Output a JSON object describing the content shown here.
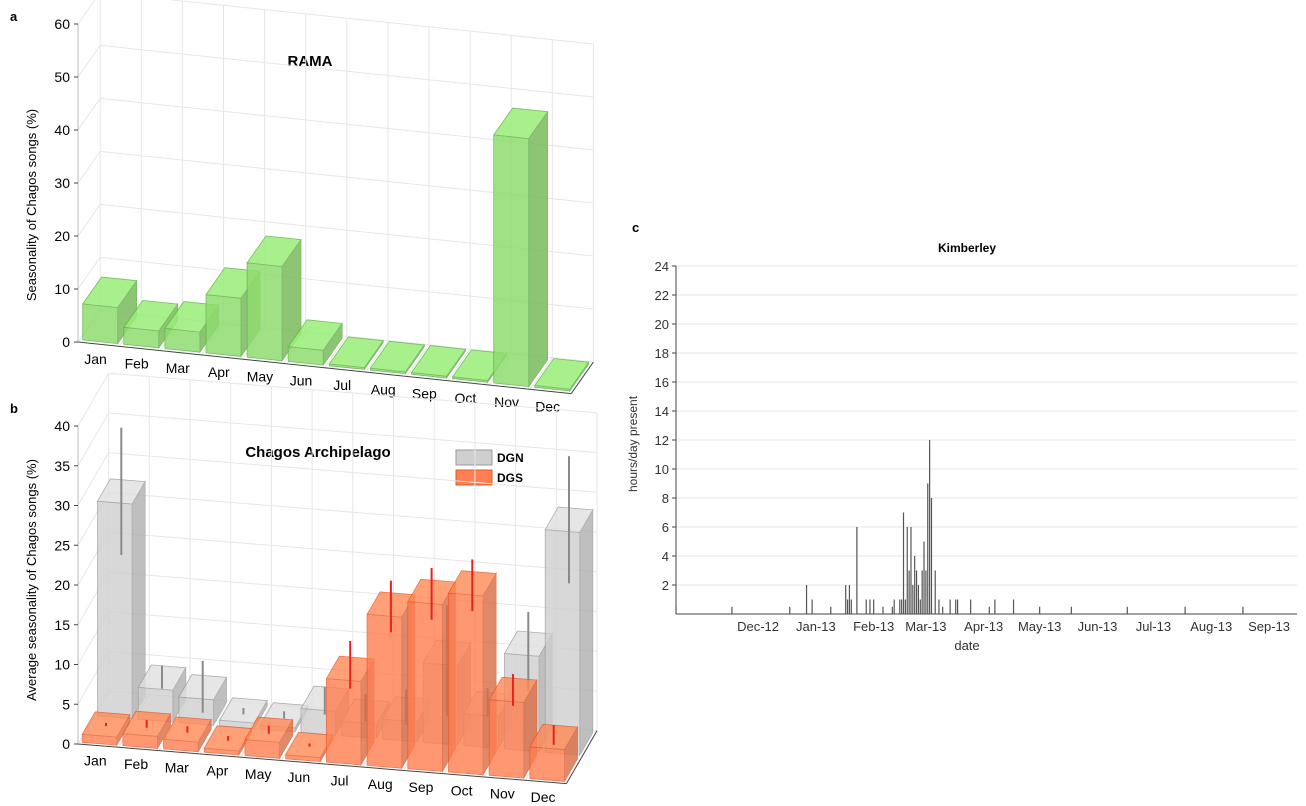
{
  "colors": {
    "rama": "#8fdc6f",
    "rama_edge": "#5fb14a",
    "dgn": "#cfcfcf",
    "dgn_edge": "#9a9a9a",
    "dgs": "#ff7f50",
    "dgs_edge": "#e0582a",
    "err_dgn": "#8a8a8a",
    "err_dgs": "#e8231f",
    "grid": "#e6e6e6",
    "bar_c": "#555555"
  },
  "chart_data": [
    {
      "panel_label": "a",
      "type": "bar",
      "title": "RAMA",
      "ylabel": "Seasonality of Chagos songs (%)",
      "ylim": [
        0,
        60
      ],
      "yticks": [
        0,
        10,
        20,
        30,
        40,
        50,
        60
      ],
      "categories": [
        "Jan",
        "Feb",
        "Mar",
        "Apr",
        "May",
        "Jun",
        "Jul",
        "Aug",
        "Sep",
        "Oct",
        "Nov",
        "Dec"
      ],
      "series": [
        {
          "values": [
            6.8,
            3.2,
            3.8,
            11.0,
            17.8,
            2.8,
            0.0,
            0.0,
            0.0,
            0.0,
            46.8,
            0.0
          ]
        }
      ]
    },
    {
      "panel_label": "b",
      "type": "bar",
      "title": "Chagos Archipelago",
      "ylabel": "Average seasonality of Chagos songs (%)",
      "ylim": [
        0,
        40
      ],
      "yticks": [
        0,
        5,
        10,
        15,
        20,
        25,
        30,
        35,
        40
      ],
      "categories": [
        "Jan",
        "Feb",
        "Mar",
        "Apr",
        "May",
        "Jun",
        "Jul",
        "Aug",
        "Sep",
        "Oct",
        "Nov",
        "Dec"
      ],
      "legend": "top-right",
      "series": [
        {
          "name": "DGN",
          "values": [
            27.0,
            4.0,
            3.2,
            0.7,
            0.5,
            3.0,
            1.8,
            2.5,
            10.0,
            4.0,
            12.0,
            28.0
          ],
          "err_low": [
            19.0,
            2.6,
            0.0,
            0.2,
            0.1,
            1.0,
            0.5,
            0.5,
            2.0,
            2.5,
            6.0,
            20.0
          ],
          "err_high": [
            35.0,
            5.5,
            6.5,
            1.0,
            1.0,
            4.5,
            4.0,
            5.0,
            16.0,
            6.0,
            16.0,
            36.0
          ]
        },
        {
          "name": "DGS",
          "values": [
            1.0,
            1.5,
            1.2,
            0.5,
            2.0,
            0.5,
            10.5,
            19.0,
            21.0,
            22.5,
            9.5,
            4.0
          ],
          "err_low": [
            0.8,
            1.0,
            0.8,
            0.2,
            1.5,
            0.3,
            8.0,
            15.5,
            17.5,
            19.0,
            7.5,
            3.0
          ],
          "err_high": [
            1.2,
            2.0,
            1.6,
            0.8,
            2.5,
            0.7,
            14.0,
            22.0,
            24.0,
            25.5,
            11.5,
            5.5
          ]
        }
      ]
    },
    {
      "panel_label": "c",
      "type": "bar",
      "title": "Kimberley",
      "xlabel": "date",
      "ylabel": "hours/day present",
      "ylim": [
        0,
        24
      ],
      "yticks": [
        2,
        4,
        6,
        8,
        10,
        12,
        14,
        16,
        18,
        20,
        22,
        24
      ],
      "xtick_labels": [
        "Dec-12",
        "Jan-13",
        "Feb-13",
        "Mar-13",
        "Apr-13",
        "May-13",
        "Jun-13",
        "Jul-13",
        "Aug-13",
        "Sep-13"
      ],
      "xlim": [
        "2012-11-01",
        "2013-09-30"
      ],
      "x": [
        "2012-11-01",
        "2012-12-01",
        "2013-01-01",
        "2013-01-10",
        "2013-01-13",
        "2013-01-23",
        "2013-01-31",
        "2013-02-01",
        "2013-02-02",
        "2013-02-03",
        "2013-02-06",
        "2013-02-11",
        "2013-02-13",
        "2013-02-15",
        "2013-02-20",
        "2013-02-25",
        "2013-02-26",
        "2013-03-01",
        "2013-03-02",
        "2013-03-03",
        "2013-03-04",
        "2013-03-05",
        "2013-03-06",
        "2013-03-07",
        "2013-03-08",
        "2013-03-09",
        "2013-03-10",
        "2013-03-11",
        "2013-03-12",
        "2013-03-13",
        "2013-03-14",
        "2013-03-15",
        "2013-03-16",
        "2013-03-17",
        "2013-03-18",
        "2013-03-20",
        "2013-03-22",
        "2013-03-24",
        "2013-03-28",
        "2013-03-31",
        "2013-04-01",
        "2013-04-08",
        "2013-04-18",
        "2013-04-21",
        "2013-05-01",
        "2013-05-15",
        "2013-06-01",
        "2013-07-01",
        "2013-08-01",
        "2013-09-01"
      ],
      "values": [
        0.5,
        0.5,
        0.5,
        2,
        1,
        0.5,
        2,
        1,
        2,
        1,
        6,
        1,
        1,
        1,
        0.5,
        0.5,
        1,
        1,
        1,
        7,
        1,
        6,
        3,
        6,
        2,
        4,
        3,
        2,
        1,
        3,
        5,
        3,
        9,
        12,
        8,
        3,
        1,
        0.5,
        1,
        1,
        1,
        1,
        0.5,
        1,
        1,
        0.5,
        0.5,
        0.5,
        0.5,
        0.5
      ]
    }
  ]
}
